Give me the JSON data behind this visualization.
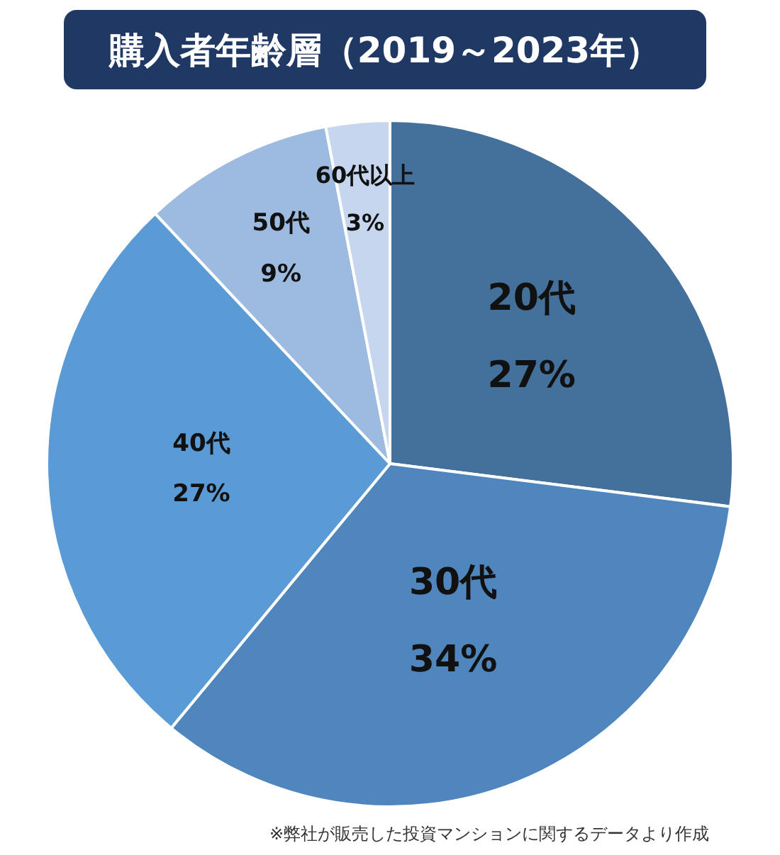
{
  "chart_data": {
    "type": "pie",
    "title": "購入者年齢層（2019～2023年）",
    "categories": [
      "20代",
      "30代",
      "40代",
      "50代",
      "60代以上"
    ],
    "values": [
      27,
      34,
      27,
      9,
      3
    ],
    "value_labels": [
      "27%",
      "34%",
      "27%",
      "9%",
      "3%"
    ],
    "colors": [
      "#44719c",
      "#4f86bd",
      "#5b9bd5",
      "#9dbbe0",
      "#c5d6ee"
    ],
    "legend": false,
    "annotations": [
      "※弊社が販売した投資マンションに関するデータより作成"
    ]
  }
}
